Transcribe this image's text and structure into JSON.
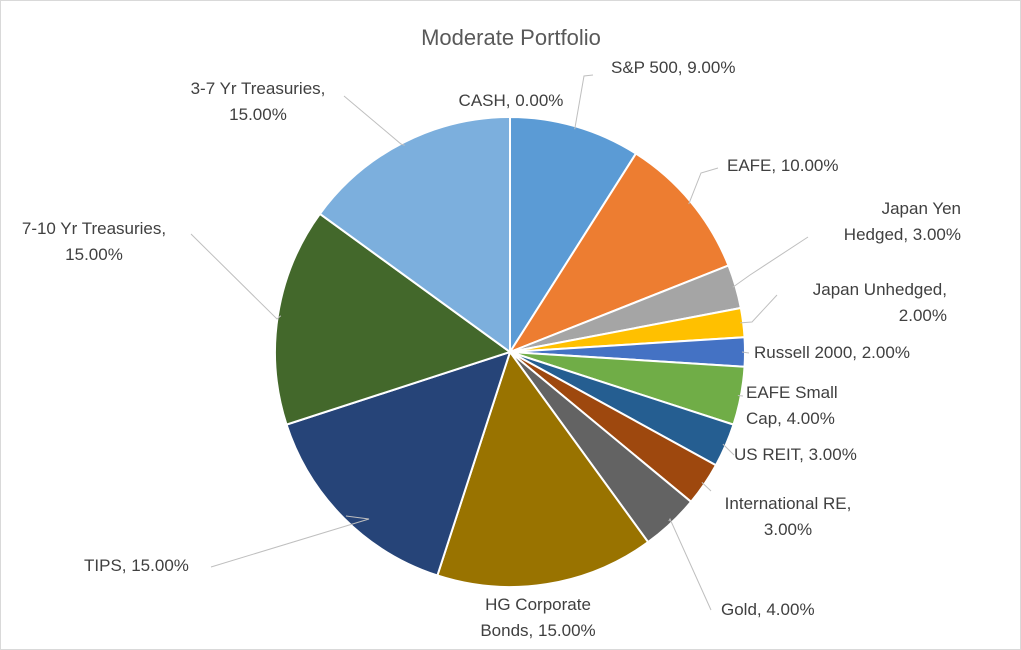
{
  "chart_data": {
    "type": "pie",
    "title": "Moderate Portfolio",
    "unit": "%",
    "slices": [
      {
        "name": "S&P 500",
        "value": 9.0,
        "label_lines": [
          "S&P 500, 9.00%"
        ],
        "color": "#5b9bd5"
      },
      {
        "name": "EAFE",
        "value": 10.0,
        "label_lines": [
          "EAFE, 10.00%"
        ],
        "color": "#ed7d31"
      },
      {
        "name": "Japan Yen Hedged",
        "value": 3.0,
        "label_lines": [
          "Japan Yen",
          "Hedged, 3.00%"
        ],
        "color": "#a5a5a5"
      },
      {
        "name": "Japan Unhedged",
        "value": 2.0,
        "label_lines": [
          "Japan Unhedged,",
          "2.00%"
        ],
        "color": "#ffc000"
      },
      {
        "name": "Russell 2000",
        "value": 2.0,
        "label_lines": [
          "Russell 2000, 2.00%"
        ],
        "color": "#4472c4"
      },
      {
        "name": "EAFE Small Cap",
        "value": 4.0,
        "label_lines": [
          "EAFE Small",
          "Cap, 4.00%"
        ],
        "color": "#70ad47"
      },
      {
        "name": "US REIT",
        "value": 3.0,
        "label_lines": [
          "US REIT, 3.00%"
        ],
        "color": "#255e91"
      },
      {
        "name": "International RE",
        "value": 3.0,
        "label_lines": [
          "International RE,",
          "3.00%"
        ],
        "color": "#9e480e"
      },
      {
        "name": "Gold",
        "value": 4.0,
        "label_lines": [
          "Gold, 4.00%"
        ],
        "color": "#636363"
      },
      {
        "name": "HG Corporate Bonds",
        "value": 15.0,
        "label_lines": [
          "HG Corporate",
          "Bonds, 15.00%"
        ],
        "color": "#997300"
      },
      {
        "name": "TIPS",
        "value": 15.0,
        "label_lines": [
          "TIPS, 15.00%"
        ],
        "color": "#264478"
      },
      {
        "name": "7-10 Yr Treasuries",
        "value": 15.0,
        "label_lines": [
          "7-10 Yr Treasuries,",
          "15.00%"
        ],
        "color": "#43682b"
      },
      {
        "name": "3-7 Yr Treasuries",
        "value": 15.0,
        "label_lines": [
          "3-7 Yr Treasuries,",
          "15.00%"
        ],
        "color": "#7cafdd"
      },
      {
        "name": "CASH",
        "value": 0.0,
        "label_lines": [
          "CASH, 0.00%"
        ],
        "color": "#f1975a"
      }
    ],
    "legend": "none",
    "start_angle": "12 o'clock, clockwise"
  }
}
